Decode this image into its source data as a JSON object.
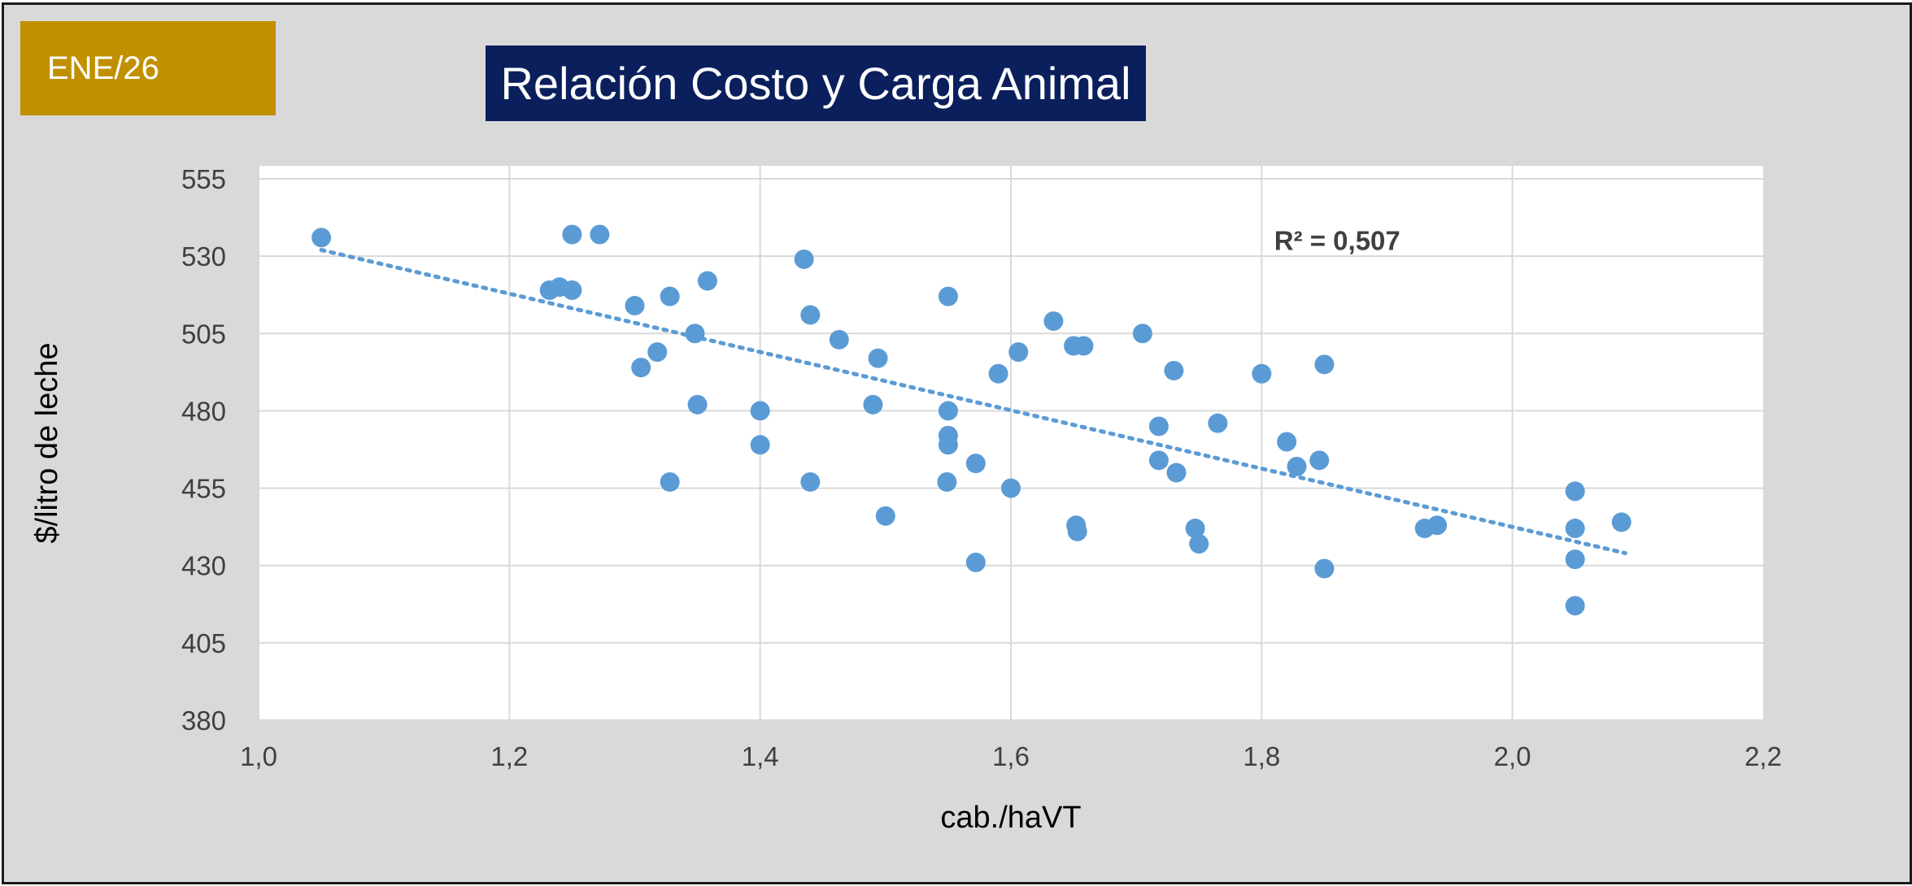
{
  "badge": {
    "label": "ENE/26"
  },
  "chart_data": {
    "type": "scatter",
    "title": "Relación Costo y Carga Animal",
    "xlabel": "cab./haVT",
    "ylabel": "$/litro de leche",
    "xlim": [
      1.0,
      2.2
    ],
    "ylim": [
      380,
      555
    ],
    "x_ticks": [
      1.0,
      1.2,
      1.4,
      1.6,
      1.8,
      2.0,
      2.2
    ],
    "x_tick_labels": [
      "1,0",
      "1,2",
      "1,4",
      "1,6",
      "1,8",
      "2,0",
      "2,2"
    ],
    "y_ticks": [
      380,
      405,
      430,
      455,
      480,
      505,
      530,
      555
    ],
    "y_tick_labels": [
      "380",
      "405",
      "430",
      "455",
      "480",
      "505",
      "530",
      "555"
    ],
    "grid": true,
    "marker_color": "#5b9bd5",
    "trendline": {
      "type": "linear",
      "style": "dotted",
      "color": "#5b9bd5",
      "x": [
        1.05,
        2.09
      ],
      "y": [
        532,
        434
      ]
    },
    "annotation": {
      "text": "R² = 0,507",
      "x": 1.81,
      "y": 532
    },
    "points": [
      [
        1.05,
        536
      ],
      [
        1.25,
        537
      ],
      [
        1.272,
        537
      ],
      [
        1.232,
        519
      ],
      [
        1.24,
        520
      ],
      [
        1.25,
        519
      ],
      [
        1.3,
        514
      ],
      [
        1.328,
        517
      ],
      [
        1.358,
        522
      ],
      [
        1.305,
        494
      ],
      [
        1.318,
        499
      ],
      [
        1.348,
        505
      ],
      [
        1.35,
        482
      ],
      [
        1.328,
        457
      ],
      [
        1.4,
        480
      ],
      [
        1.4,
        469
      ],
      [
        1.435,
        529
      ],
      [
        1.44,
        511
      ],
      [
        1.44,
        457
      ],
      [
        1.463,
        503
      ],
      [
        1.494,
        497
      ],
      [
        1.49,
        482
      ],
      [
        1.5,
        446
      ],
      [
        1.55,
        517
      ],
      [
        1.55,
        480
      ],
      [
        1.55,
        472
      ],
      [
        1.55,
        469
      ],
      [
        1.549,
        457
      ],
      [
        1.572,
        463
      ],
      [
        1.572,
        431
      ],
      [
        1.59,
        492
      ],
      [
        1.606,
        499
      ],
      [
        1.6,
        455
      ],
      [
        1.634,
        509
      ],
      [
        1.65,
        501
      ],
      [
        1.658,
        501
      ],
      [
        1.652,
        443
      ],
      [
        1.653,
        441
      ],
      [
        1.705,
        505
      ],
      [
        1.718,
        475
      ],
      [
        1.718,
        464
      ],
      [
        1.73,
        493
      ],
      [
        1.732,
        460
      ],
      [
        1.765,
        476
      ],
      [
        1.747,
        442
      ],
      [
        1.75,
        437
      ],
      [
        1.8,
        492
      ],
      [
        1.82,
        470
      ],
      [
        1.828,
        462
      ],
      [
        1.846,
        464
      ],
      [
        1.85,
        495
      ],
      [
        1.85,
        429
      ],
      [
        1.93,
        442
      ],
      [
        1.94,
        443
      ],
      [
        2.05,
        454
      ],
      [
        2.05,
        442
      ],
      [
        2.05,
        432
      ],
      [
        2.05,
        417
      ],
      [
        2.087,
        444
      ]
    ]
  }
}
